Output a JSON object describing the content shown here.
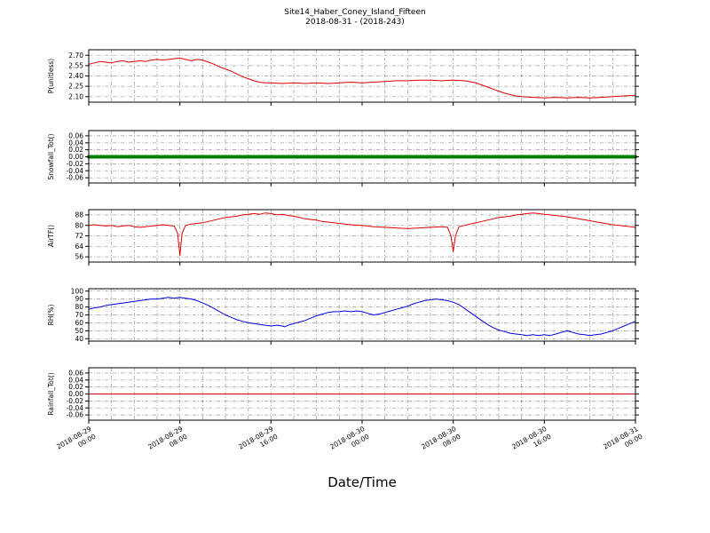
{
  "chart_data": {
    "type": "line",
    "title": "Site14_Haber_Coney_Island_Fifteen",
    "subtitle": "2018-08-31 - (2018-243)",
    "xlabel": "Date/Time",
    "grid": true,
    "x_unit": "hours since 2018-08-29 00:00",
    "xlim": [
      0,
      48
    ],
    "grid_step_hours": 2,
    "xticks": [
      0,
      8,
      16,
      24,
      32,
      40,
      48
    ],
    "x_ticklabels": [
      [
        "2018-08-29",
        "00:00"
      ],
      [
        "2018-08-29",
        "08:00"
      ],
      [
        "2018-08-29",
        "16:00"
      ],
      [
        "2018-08-30",
        "00:00"
      ],
      [
        "2018-08-30",
        "08:00"
      ],
      [
        "2018-08-30",
        "16:00"
      ],
      [
        "2018-08-31",
        "00:00"
      ]
    ],
    "panels": [
      {
        "ylabel": "P(unitless)",
        "color": "#dd0000",
        "linewidth": 1,
        "ylim": [
          2.02,
          2.78
        ],
        "ytick_values": [
          2.7,
          2.55,
          2.4,
          2.25,
          2.1
        ],
        "ytick_labels": [
          "2.70",
          "2.55",
          "2.40",
          "2.25",
          "2.10"
        ],
        "points": [
          [
            0,
            2.57
          ],
          [
            0.5,
            2.59
          ],
          [
            1,
            2.61
          ],
          [
            1.5,
            2.6
          ],
          [
            2,
            2.59
          ],
          [
            2.5,
            2.61
          ],
          [
            3,
            2.62
          ],
          [
            3.5,
            2.6
          ],
          [
            4,
            2.61
          ],
          [
            4.5,
            2.62
          ],
          [
            5,
            2.61
          ],
          [
            5.5,
            2.63
          ],
          [
            6,
            2.64
          ],
          [
            6.5,
            2.63
          ],
          [
            7,
            2.64
          ],
          [
            7.5,
            2.65
          ],
          [
            8,
            2.66
          ],
          [
            8.5,
            2.64
          ],
          [
            9,
            2.62
          ],
          [
            9.5,
            2.64
          ],
          [
            10,
            2.63
          ],
          [
            10.5,
            2.6
          ],
          [
            11,
            2.57
          ],
          [
            11.5,
            2.53
          ],
          [
            12,
            2.5
          ],
          [
            12.5,
            2.47
          ],
          [
            13,
            2.43
          ],
          [
            13.5,
            2.39
          ],
          [
            14,
            2.36
          ],
          [
            14.5,
            2.33
          ],
          [
            15,
            2.31
          ],
          [
            15.5,
            2.3
          ],
          [
            16,
            2.3
          ],
          [
            17,
            2.29
          ],
          [
            18,
            2.3
          ],
          [
            19,
            2.29
          ],
          [
            20,
            2.3
          ],
          [
            21,
            2.29
          ],
          [
            22,
            2.3
          ],
          [
            23,
            2.31
          ],
          [
            24,
            2.3
          ],
          [
            25,
            2.31
          ],
          [
            26,
            2.32
          ],
          [
            27,
            2.33
          ],
          [
            28,
            2.33
          ],
          [
            29,
            2.34
          ],
          [
            30,
            2.34
          ],
          [
            31,
            2.33
          ],
          [
            32,
            2.34
          ],
          [
            33,
            2.33
          ],
          [
            34,
            2.3
          ],
          [
            34.5,
            2.27
          ],
          [
            35,
            2.24
          ],
          [
            35.5,
            2.21
          ],
          [
            36,
            2.18
          ],
          [
            36.5,
            2.15
          ],
          [
            37,
            2.13
          ],
          [
            37.5,
            2.11
          ],
          [
            38,
            2.1
          ],
          [
            39,
            2.09
          ],
          [
            40,
            2.08
          ],
          [
            41,
            2.09
          ],
          [
            42,
            2.08
          ],
          [
            43,
            2.09
          ],
          [
            44,
            2.08
          ],
          [
            45,
            2.09
          ],
          [
            46,
            2.1
          ],
          [
            47,
            2.11
          ],
          [
            48,
            2.12
          ]
        ]
      },
      {
        "ylabel": "Snowfall_Tot()",
        "color": "#008000",
        "linewidth": 4,
        "ylim": [
          -0.075,
          0.075
        ],
        "ytick_values": [
          0.06,
          0.04,
          0.02,
          0.0,
          -0.02,
          -0.04,
          -0.06
        ],
        "ytick_labels": [
          "0.06",
          "0.04",
          "0.02",
          "0.00",
          "-0.02",
          "-0.04",
          "-0.06"
        ],
        "points": [
          [
            0,
            0
          ],
          [
            48,
            0
          ]
        ]
      },
      {
        "ylabel": "AirTF()",
        "color": "#dd0000",
        "linewidth": 1,
        "ylim": [
          52,
          92
        ],
        "ytick_values": [
          88,
          80,
          72,
          64,
          56
        ],
        "ytick_labels": [
          "88",
          "80",
          "72",
          "64",
          "56"
        ],
        "points": [
          [
            0,
            80
          ],
          [
            0.5,
            80.5
          ],
          [
            1,
            80
          ],
          [
            1.5,
            79.5
          ],
          [
            2,
            80
          ],
          [
            2.5,
            79
          ],
          [
            3,
            79.5
          ],
          [
            3.5,
            80
          ],
          [
            4,
            79
          ],
          [
            4.5,
            78.5
          ],
          [
            5,
            79
          ],
          [
            5.5,
            79.5
          ],
          [
            6,
            80
          ],
          [
            6.5,
            80.5
          ],
          [
            7,
            80
          ],
          [
            7.5,
            79.5
          ],
          [
            7.8,
            74
          ],
          [
            8,
            57
          ],
          [
            8.2,
            74
          ],
          [
            8.5,
            80
          ],
          [
            9,
            81
          ],
          [
            9.5,
            81.5
          ],
          [
            10,
            82
          ],
          [
            10.5,
            83
          ],
          [
            11,
            84
          ],
          [
            11.5,
            85
          ],
          [
            12,
            86
          ],
          [
            12.5,
            86.5
          ],
          [
            13,
            87
          ],
          [
            13.5,
            88
          ],
          [
            14,
            88.5
          ],
          [
            14.5,
            89
          ],
          [
            15,
            88.5
          ],
          [
            15.5,
            89.5
          ],
          [
            16,
            89
          ],
          [
            16.5,
            88
          ],
          [
            17,
            88.5
          ],
          [
            17.5,
            87.5
          ],
          [
            18,
            87
          ],
          [
            18.5,
            86
          ],
          [
            19,
            85
          ],
          [
            19.5,
            84.5
          ],
          [
            20,
            84
          ],
          [
            20.5,
            83
          ],
          [
            21,
            82.5
          ],
          [
            22,
            81.5
          ],
          [
            23,
            80.5
          ],
          [
            24,
            80
          ],
          [
            25,
            79
          ],
          [
            26,
            78.5
          ],
          [
            27,
            78
          ],
          [
            28,
            77.5
          ],
          [
            29,
            78
          ],
          [
            30,
            78.5
          ],
          [
            31,
            79
          ],
          [
            31.5,
            78.5
          ],
          [
            31.8,
            72
          ],
          [
            32,
            60
          ],
          [
            32.2,
            72
          ],
          [
            32.5,
            79
          ],
          [
            33,
            80
          ],
          [
            33.5,
            81
          ],
          [
            34,
            82
          ],
          [
            34.5,
            83
          ],
          [
            35,
            84
          ],
          [
            35.5,
            85
          ],
          [
            36,
            86
          ],
          [
            36.5,
            86.5
          ],
          [
            37,
            87
          ],
          [
            37.5,
            88
          ],
          [
            38,
            88.5
          ],
          [
            38.5,
            89
          ],
          [
            39,
            89.5
          ],
          [
            39.5,
            89
          ],
          [
            40,
            88.5
          ],
          [
            40.5,
            88
          ],
          [
            41,
            87.5
          ],
          [
            42,
            86.5
          ],
          [
            43,
            85
          ],
          [
            44,
            83.5
          ],
          [
            45,
            82
          ],
          [
            46,
            80.5
          ],
          [
            47,
            79.5
          ],
          [
            48,
            78.5
          ]
        ]
      },
      {
        "ylabel": "RH(%)",
        "color": "#0000dd",
        "linewidth": 1,
        "ylim": [
          37,
          103
        ],
        "ytick_values": [
          100,
          90,
          80,
          70,
          60,
          50,
          40
        ],
        "ytick_labels": [
          "100",
          "90",
          "80",
          "70",
          "60",
          "50",
          "40"
        ],
        "points": [
          [
            0,
            77
          ],
          [
            0.5,
            79
          ],
          [
            1,
            80
          ],
          [
            1.5,
            82
          ],
          [
            2,
            83
          ],
          [
            2.5,
            84
          ],
          [
            3,
            85
          ],
          [
            3.5,
            86
          ],
          [
            4,
            87
          ],
          [
            4.5,
            88
          ],
          [
            5,
            89
          ],
          [
            5.5,
            90
          ],
          [
            6,
            90
          ],
          [
            6.5,
            91
          ],
          [
            7,
            92
          ],
          [
            7.5,
            91
          ],
          [
            8,
            92
          ],
          [
            8.5,
            91
          ],
          [
            9,
            90
          ],
          [
            9.5,
            88
          ],
          [
            10,
            85
          ],
          [
            10.5,
            82
          ],
          [
            11,
            78
          ],
          [
            11.5,
            74
          ],
          [
            12,
            70
          ],
          [
            12.5,
            67
          ],
          [
            13,
            64
          ],
          [
            13.5,
            62
          ],
          [
            14,
            60
          ],
          [
            14.5,
            59
          ],
          [
            15,
            58
          ],
          [
            15.5,
            57
          ],
          [
            16,
            56
          ],
          [
            16.5,
            57
          ],
          [
            17,
            56
          ],
          [
            17.2,
            55
          ],
          [
            17.5,
            57
          ],
          [
            18,
            59
          ],
          [
            18.5,
            61
          ],
          [
            19,
            63
          ],
          [
            19.5,
            66
          ],
          [
            20,
            69
          ],
          [
            20.5,
            71
          ],
          [
            21,
            73
          ],
          [
            21.5,
            74
          ],
          [
            22,
            74
          ],
          [
            22.5,
            75
          ],
          [
            23,
            74
          ],
          [
            23.5,
            75
          ],
          [
            24,
            74
          ],
          [
            24.5,
            72
          ],
          [
            25,
            70
          ],
          [
            25.5,
            71
          ],
          [
            26,
            73
          ],
          [
            26.5,
            75
          ],
          [
            27,
            77
          ],
          [
            27.5,
            79
          ],
          [
            28,
            81
          ],
          [
            28.5,
            84
          ],
          [
            29,
            86
          ],
          [
            29.5,
            88
          ],
          [
            30,
            89
          ],
          [
            30.5,
            90
          ],
          [
            31,
            89
          ],
          [
            31.5,
            88
          ],
          [
            32,
            86
          ],
          [
            32.5,
            83
          ],
          [
            33,
            78
          ],
          [
            33.5,
            73
          ],
          [
            34,
            68
          ],
          [
            34.5,
            63
          ],
          [
            35,
            58
          ],
          [
            35.5,
            54
          ],
          [
            36,
            51
          ],
          [
            36.5,
            49
          ],
          [
            37,
            47
          ],
          [
            37.5,
            46
          ],
          [
            38,
            45
          ],
          [
            38.5,
            44
          ],
          [
            39,
            45
          ],
          [
            39.5,
            44
          ],
          [
            40,
            45
          ],
          [
            40.5,
            44
          ],
          [
            41,
            46
          ],
          [
            41.5,
            48
          ],
          [
            42,
            50
          ],
          [
            42.5,
            48
          ],
          [
            43,
            46
          ],
          [
            43.5,
            45
          ],
          [
            44,
            44
          ],
          [
            44.5,
            45
          ],
          [
            45,
            46
          ],
          [
            45.5,
            48
          ],
          [
            46,
            50
          ],
          [
            46.5,
            53
          ],
          [
            47,
            56
          ],
          [
            47.5,
            59
          ],
          [
            48,
            62
          ]
        ]
      },
      {
        "ylabel": "Rainfall_Tot()",
        "color": "#dd0000",
        "linewidth": 1,
        "ylim": [
          -0.075,
          0.075
        ],
        "ytick_values": [
          0.06,
          0.04,
          0.02,
          0.0,
          -0.02,
          -0.04,
          -0.06
        ],
        "ytick_labels": [
          "0.06",
          "0.04",
          "0.02",
          "0.00",
          "-0.02",
          "-0.04",
          "-0.06"
        ],
        "points": [
          [
            0,
            0
          ],
          [
            48,
            0
          ]
        ]
      }
    ]
  }
}
